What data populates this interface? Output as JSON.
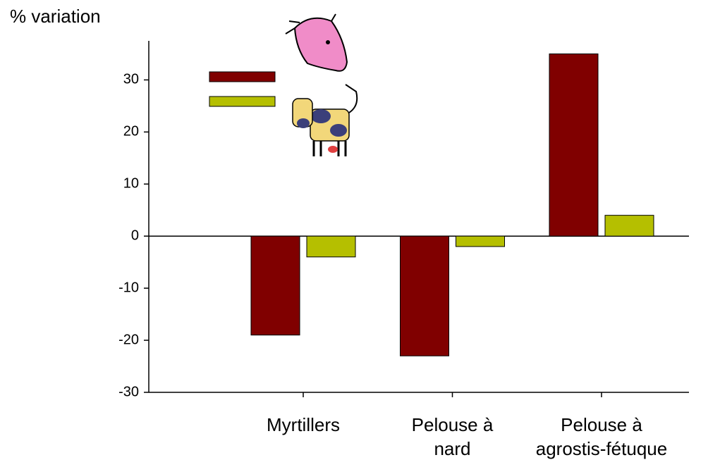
{
  "chart_data": {
    "type": "bar",
    "title": "% variation",
    "categories": [
      "Myrtillers",
      "Pelouse à\nnard",
      "Pelouse à\nagrostis-fétuque"
    ],
    "series": [
      {
        "color": "#800000",
        "values": [
          -19,
          -23,
          35
        ]
      },
      {
        "color": "#b5bf00",
        "values": [
          -4,
          -2,
          4
        ]
      }
    ],
    "ylim": [
      -30,
      37.5
    ],
    "yticks": [
      -30,
      -20,
      -10,
      0,
      10,
      20,
      30
    ],
    "grid": false
  }
}
